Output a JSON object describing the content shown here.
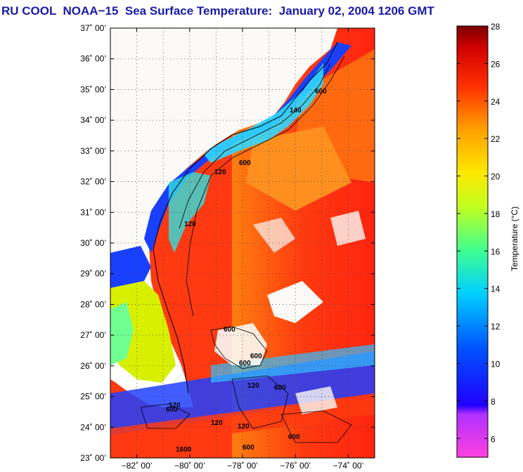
{
  "title": "RU COOL  NOAA−15  Sea Surface Temperature:  January 02, 2004 1206 GMT",
  "map": {
    "lat_ticks": [
      "37˚ 00’",
      "36˚ 00’",
      "35˚ 00’",
      "34˚ 00’",
      "33˚ 00’",
      "32˚ 00’",
      "31˚ 00’",
      "30˚ 00’",
      "29˚ 00’",
      "28˚ 00’",
      "27˚ 00’",
      "26˚ 00’",
      "25˚ 00’",
      "24˚ 00’",
      "23˚ 00’"
    ],
    "lon_ticks": [
      "−82˚ 00’",
      "−80˚ 00’",
      "−78˚ 00’",
      "−76˚ 00’",
      "−74˚ 00’"
    ],
    "lat_range": [
      23,
      37
    ],
    "lon_range": [
      -83,
      -73
    ],
    "grid": true,
    "contour_labels": [
      "600",
      "140",
      "120",
      "600",
      "120",
      "600",
      "600",
      "600",
      "120",
      "600",
      "120",
      "600",
      "600",
      "120",
      "120",
      "600",
      "1600"
    ]
  },
  "colorbar": {
    "ticks": [
      "28",
      "26",
      "24",
      "22",
      "20",
      "18",
      "16",
      "14",
      "12",
      "10",
      "8",
      "6"
    ],
    "range": [
      5,
      28
    ],
    "label": "Temperature (°C)"
  },
  "colors": {
    "title": "#1a1aa8",
    "land": "#fbfaf6",
    "warm": "#ff2a10",
    "cool": "#1a2cff",
    "shelf": "#d8f000"
  }
}
